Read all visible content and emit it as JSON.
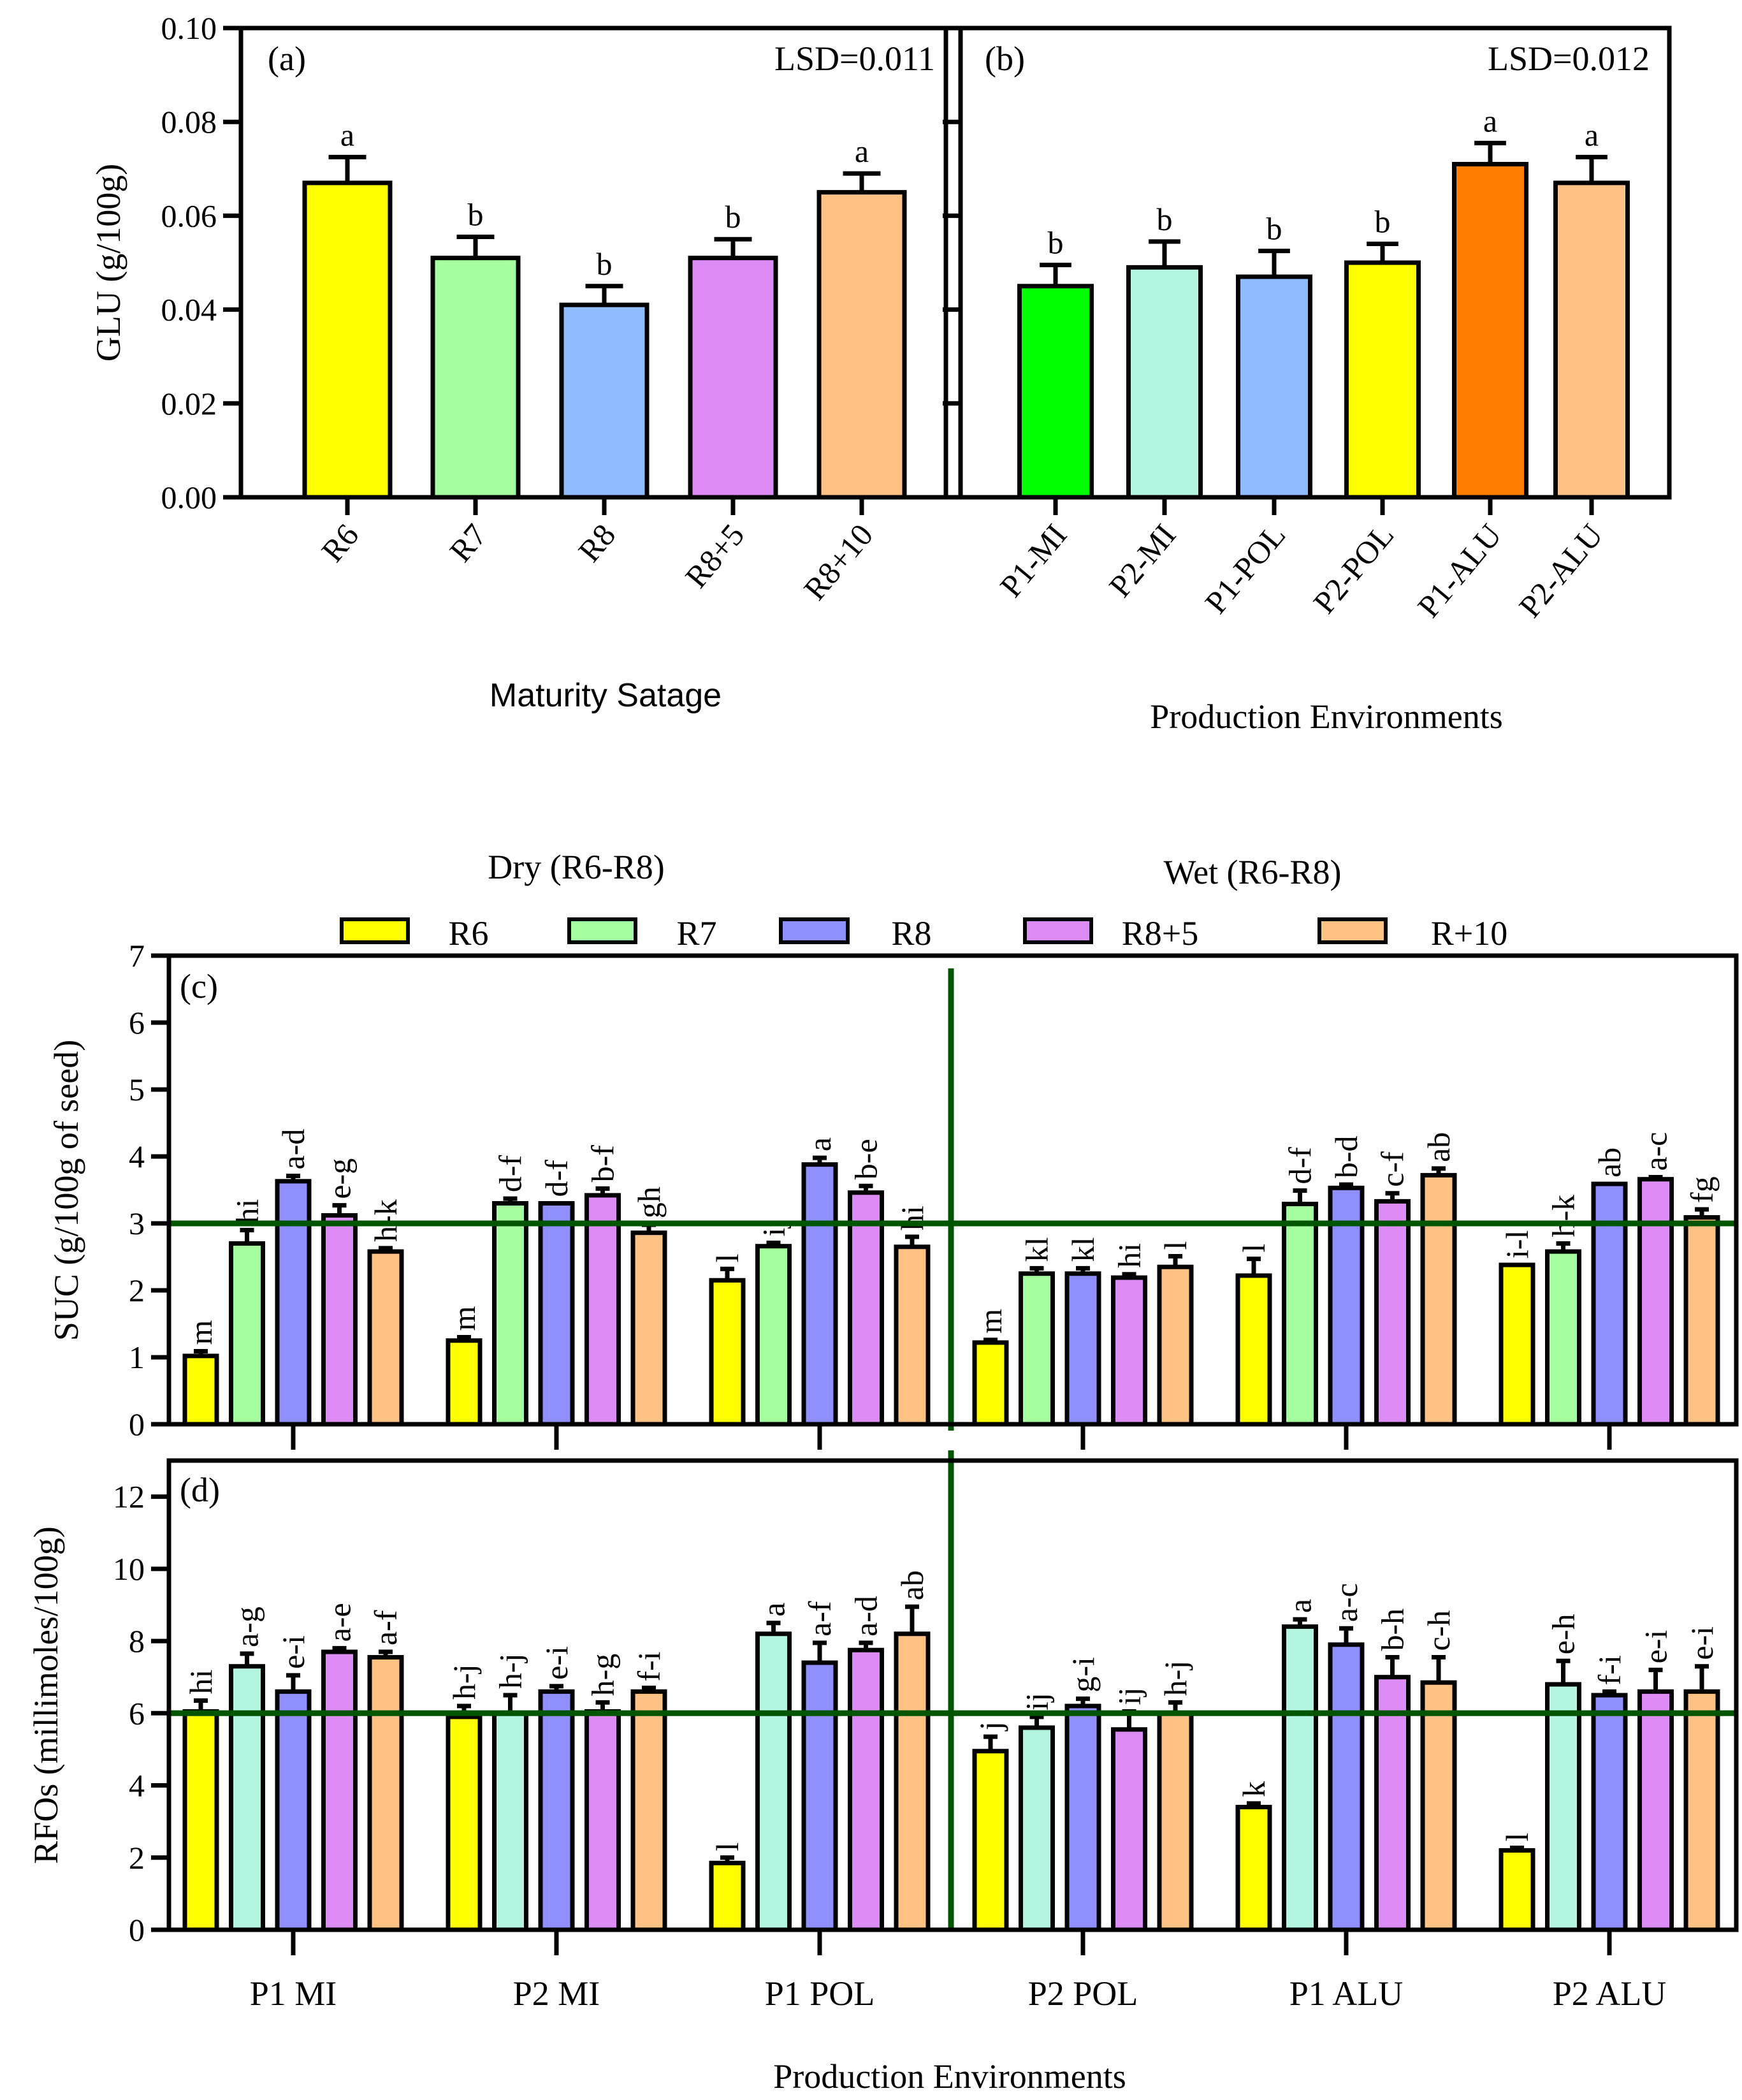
{
  "chart_data": [
    {
      "panel": "(a)",
      "type": "bar",
      "annotation": "LSD=0.011",
      "ylabel": "GLU (g/100g)",
      "xlabel": "Maturity Satage",
      "ylim": [
        0,
        0.1
      ],
      "yticks": [
        "0.00",
        "0.02",
        "0.04",
        "0.06",
        "0.08",
        "0.10"
      ],
      "categories": [
        "R6",
        "R7",
        "R8",
        "R8+5",
        "R8+10"
      ],
      "values": [
        0.067,
        0.051,
        0.041,
        0.051,
        0.065
      ],
      "errors": [
        0.0055,
        0.0045,
        0.004,
        0.004,
        0.004
      ],
      "letters": [
        "a",
        "b",
        "b",
        "b",
        "a"
      ],
      "colors": [
        "#ffff00",
        "#a6ff9e",
        "#8fbcff",
        "#dd8cf5",
        "#ffc285"
      ]
    },
    {
      "panel": "(b)",
      "type": "bar",
      "annotation": "LSD=0.012",
      "xlabel": "Production Environments",
      "ylim": [
        0,
        0.1
      ],
      "categories": [
        "P1-MI",
        "P2-MI",
        "P1-POL",
        "P2-POL",
        "P1-ALU",
        "P2-ALU"
      ],
      "values": [
        0.045,
        0.049,
        0.047,
        0.05,
        0.071,
        0.067
      ],
      "errors": [
        0.0045,
        0.0055,
        0.0055,
        0.004,
        0.0045,
        0.0055
      ],
      "letters": [
        "b",
        "b",
        "b",
        "b",
        "a",
        "a"
      ],
      "colors": [
        "#00ff00",
        "#b3f5e0",
        "#8fbcff",
        "#ffff00",
        "#ff8000",
        "#ffc285"
      ]
    },
    {
      "panel": "(c)",
      "type": "bar",
      "ylabel": "SUC (g/100g of seed)",
      "ylim": [
        0,
        7
      ],
      "yticks": [
        "0",
        "1",
        "2",
        "3",
        "4",
        "5",
        "6",
        "7"
      ],
      "reference_line": 3,
      "groups": [
        "P1 MI",
        "P2 MI",
        "P1 POL",
        "P2 POL",
        "P1 ALU",
        "P2 ALU"
      ],
      "series": [
        {
          "name": "R6",
          "color": "#ffff00",
          "values": [
            1.02,
            1.25,
            2.15,
            1.22,
            2.22,
            2.38
          ],
          "errors": [
            0.07,
            0.05,
            0.17,
            0.04,
            0.25,
            0
          ],
          "letters": [
            "m",
            "m",
            "l",
            "m",
            "l",
            "i-l"
          ]
        },
        {
          "name": "R7",
          "color": "#a6ff9e",
          "values": [
            2.7,
            3.3,
            2.66,
            2.25,
            3.29,
            2.58
          ],
          "errors": [
            0.2,
            0.07,
            0.05,
            0.08,
            0.2,
            0.12
          ],
          "letters": [
            "hi",
            "d-f",
            "ij",
            "kl",
            "d-f",
            "h-k"
          ]
        },
        {
          "name": "R8",
          "color": "#8f8fff",
          "values": [
            3.63,
            3.3,
            3.88,
            2.25,
            3.53,
            3.59
          ],
          "errors": [
            0.08,
            0,
            0.1,
            0.08,
            0.05,
            0
          ],
          "letters": [
            "a-d",
            "d-f",
            "a",
            "kl",
            "b-d",
            "ab"
          ]
        },
        {
          "name": "R8+5",
          "color": "#dd8cf5",
          "values": [
            3.12,
            3.42,
            3.46,
            2.19,
            3.33,
            3.66
          ],
          "errors": [
            0.15,
            0.1,
            0.1,
            0.05,
            0.12,
            0.03
          ],
          "letters": [
            "e-g",
            "b-f",
            "b-e",
            "hi",
            "c-f",
            "a-c"
          ]
        },
        {
          "name": "R+10",
          "color": "#ffc285",
          "values": [
            2.58,
            2.86,
            2.65,
            2.35,
            3.72,
            3.09
          ],
          "errors": [
            0.05,
            0.12,
            0.15,
            0.16,
            0.1,
            0.12
          ],
          "letters": [
            "h-k",
            "gh",
            "hi",
            "l",
            "ab",
            "fg"
          ]
        }
      ]
    },
    {
      "panel": "(d)",
      "type": "bar",
      "ylabel": "RFOs (millimoles/100g)",
      "xlabel": "Production Environments",
      "ylim": [
        0,
        13
      ],
      "yticks": [
        "0",
        "2",
        "4",
        "6",
        "8",
        "10",
        "12"
      ],
      "reference_line": 6,
      "groups": [
        "P1 MI",
        "P2 MI",
        "P1 POL",
        "P2 POL",
        "P1 ALU",
        "P2 ALU"
      ],
      "series": [
        {
          "name": "R6",
          "color": "#ffff00",
          "values": [
            6.05,
            5.9,
            1.85,
            4.95,
            3.4,
            2.2
          ],
          "errors": [
            0.3,
            0.3,
            0.15,
            0.4,
            0.1,
            0.07
          ],
          "letters": [
            "hi",
            "h-j",
            "l",
            "j",
            "k",
            "l"
          ]
        },
        {
          "name": "R7",
          "color": "#b3f5e0",
          "values": [
            7.3,
            6.0,
            8.2,
            5.6,
            8.4,
            6.8
          ],
          "errors": [
            0.35,
            0.5,
            0.3,
            0.3,
            0.2,
            0.65
          ],
          "letters": [
            "a-g",
            "h-j",
            "a",
            "ij",
            "a",
            "e-h"
          ]
        },
        {
          "name": "R8",
          "color": "#8f8fff",
          "values": [
            6.6,
            6.6,
            7.4,
            6.2,
            7.9,
            6.5
          ],
          "errors": [
            0.45,
            0.15,
            0.55,
            0.2,
            0.45,
            0.1
          ],
          "letters": [
            "e-i",
            "e-i",
            "a-f",
            "g-i",
            "a-c",
            "f-i"
          ]
        },
        {
          "name": "R8+5",
          "color": "#dd8cf5",
          "values": [
            7.7,
            6.05,
            7.75,
            5.55,
            7.0,
            6.6
          ],
          "errors": [
            0.1,
            0.25,
            0.2,
            0.5,
            0.55,
            0.6
          ],
          "letters": [
            "a-e",
            "h-g",
            "a-d",
            "ij",
            "b-h",
            "e-i"
          ]
        },
        {
          "name": "R+10",
          "color": "#ffc285",
          "values": [
            7.55,
            6.6,
            8.2,
            6.0,
            6.85,
            6.6
          ],
          "errors": [
            0.15,
            0.1,
            0.75,
            0.3,
            0.7,
            0.7
          ],
          "letters": [
            "a-f",
            "f-i",
            "ab",
            "h-j",
            "c-h",
            "e-i"
          ]
        }
      ]
    }
  ],
  "legend": {
    "group_headers": [
      "Dry (R6-R8)",
      "Wet (R6-R8)"
    ],
    "entries": [
      {
        "label": "R6",
        "color": "#ffff00"
      },
      {
        "label": "R7",
        "color": "#a6ff9e"
      },
      {
        "label": "R8",
        "color": "#8f8fff"
      },
      {
        "label": "R8+5",
        "color": "#dd8cf5"
      },
      {
        "label": "R+10",
        "color": "#ffc285"
      }
    ]
  },
  "reference_line_color": "#005500"
}
